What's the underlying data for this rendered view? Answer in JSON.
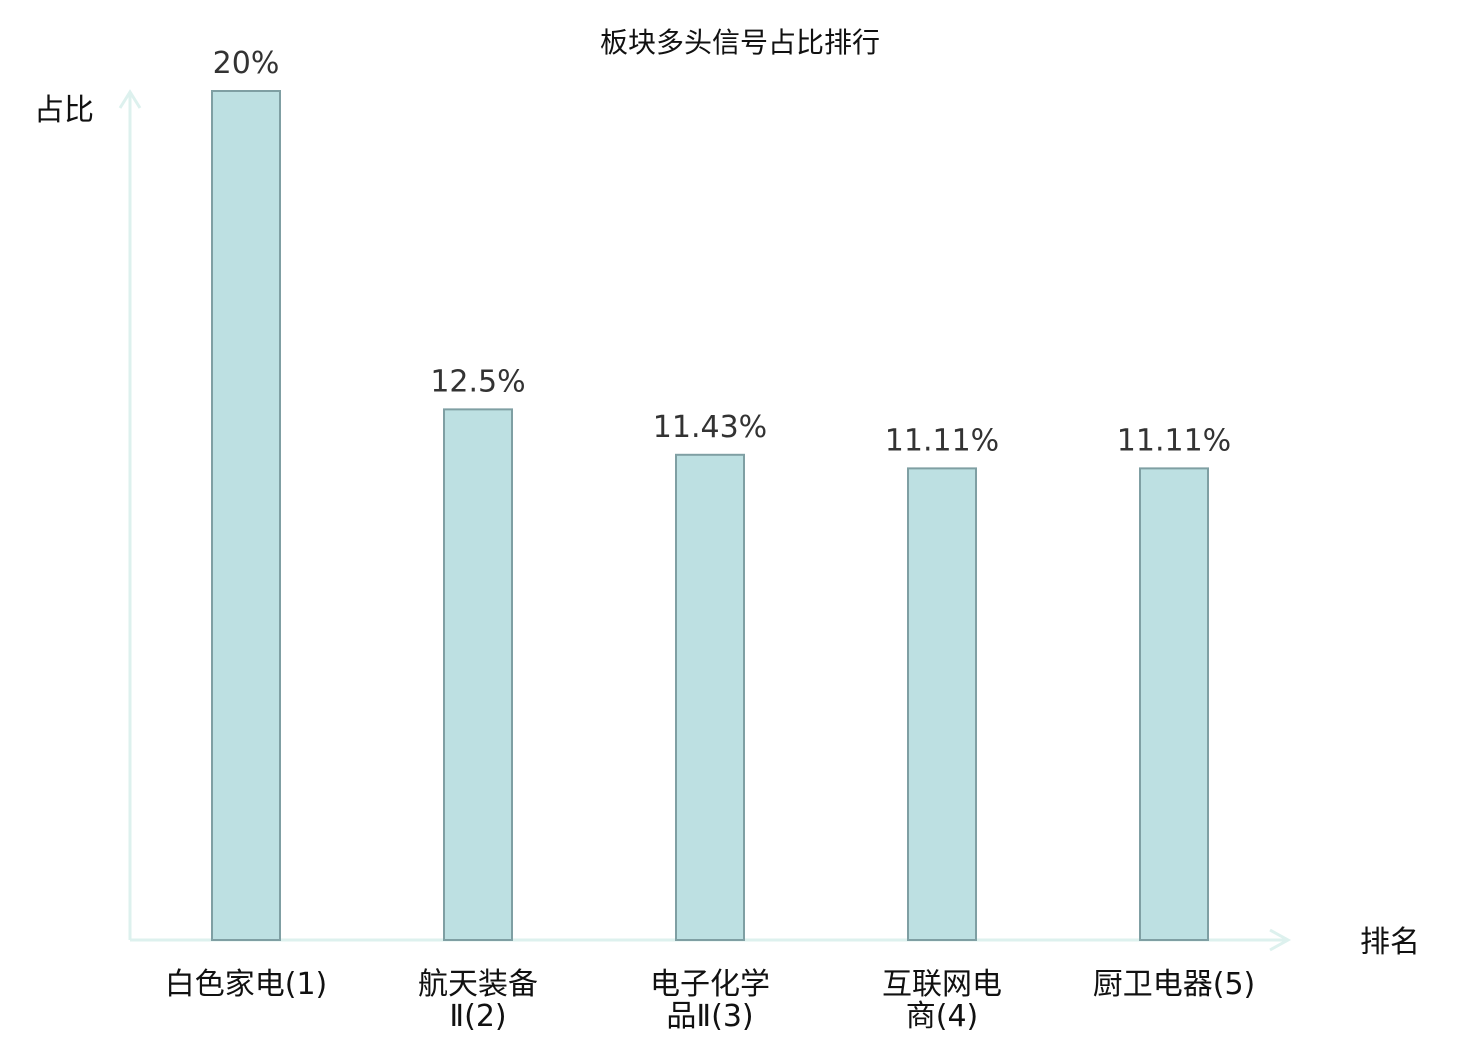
{
  "chart_data": {
    "type": "bar",
    "title": "板块多头信号占比排行",
    "xlabel": "排名",
    "ylabel": "占比",
    "categories": [
      {
        "lines": [
          "白色家电(1)"
        ],
        "highlight": false
      },
      {
        "lines": [
          "航天装备",
          "Ⅱ(2)"
        ],
        "highlight": false
      },
      {
        "lines": [
          "电子化学",
          "品Ⅱ(3)"
        ],
        "highlight": false
      },
      {
        "lines": [
          "互联网电",
          "商(4)"
        ],
        "highlight": true
      },
      {
        "lines": [
          "厨卫电器(5)"
        ],
        "highlight": false
      }
    ],
    "values": [
      20,
      12.5,
      11.43,
      11.11,
      11.11
    ],
    "value_labels": [
      "20%",
      "12.5%",
      "11.43%",
      "11.11%",
      "11.11%"
    ],
    "ylim": [
      0,
      20
    ],
    "grid": false,
    "colors": {
      "bar_fill": "#bde0e2",
      "bar_stroke": "#7f9fa3",
      "axis": "#ddf1ee",
      "highlight_text": "#e00000",
      "text": "#111111"
    }
  }
}
